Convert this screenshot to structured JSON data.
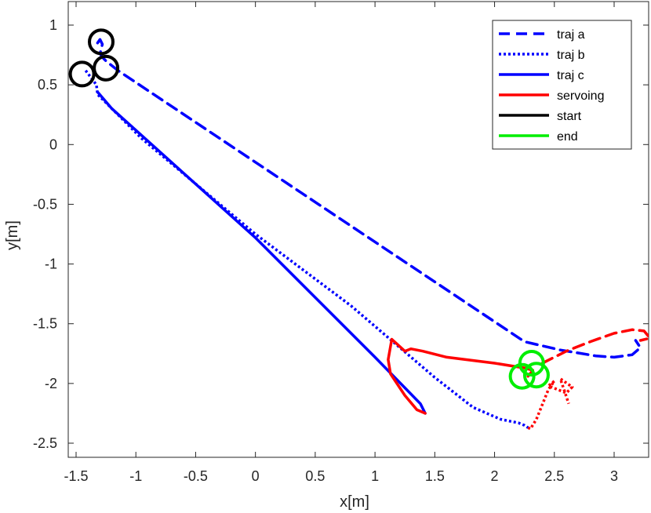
{
  "chart_data": {
    "type": "line",
    "xlabel": "x[m]",
    "ylabel": "y[m]",
    "xlim": [
      -1.55,
      3.3
    ],
    "ylim": [
      -2.6,
      1.2
    ],
    "xticks": [
      -1.5,
      -1,
      -0.5,
      0,
      0.5,
      1,
      1.5,
      2,
      2.5,
      3
    ],
    "xtick_labels": [
      "-1.5",
      "-1",
      "-0.5",
      "0",
      "0.5",
      "1",
      "1.5",
      "2",
      "2.5",
      "3"
    ],
    "yticks": [
      1,
      0.5,
      0,
      -0.5,
      -1,
      -1.5,
      -2,
      -2.5
    ],
    "ytick_labels": [
      "1",
      "0.5",
      "0",
      "-0.5",
      "-1",
      "-1.5",
      "-2",
      "-2.5"
    ],
    "grid": false,
    "legend": {
      "placement": "top-right"
    },
    "series": [
      {
        "name": "traj a",
        "color": "#0000ff",
        "style": "dashed",
        "x": [
          -1.32,
          -1.3,
          -1.28,
          -1.29,
          -1.3,
          -1.27,
          -1.25,
          -1.15,
          2.25,
          2.55,
          2.85,
          3.0,
          3.15,
          3.22,
          3.18
        ],
        "y": [
          0.85,
          0.88,
          0.84,
          0.8,
          0.76,
          0.72,
          0.7,
          0.62,
          -1.65,
          -1.72,
          -1.77,
          -1.78,
          -1.76,
          -1.7,
          -1.64
        ]
      },
      {
        "name": "traj b",
        "color": "#0000ff",
        "style": "dotted",
        "x": [
          -1.42,
          -1.33,
          -1.32,
          -0.95,
          0.0,
          0.8,
          1.5,
          1.82,
          2.05,
          2.15,
          2.2,
          2.25,
          2.28
        ],
        "y": [
          0.62,
          0.5,
          0.42,
          0.05,
          -0.75,
          -1.35,
          -1.95,
          -2.2,
          -2.3,
          -2.32,
          -2.33,
          -2.35,
          -2.37
        ]
      },
      {
        "name": "traj c",
        "color": "#0000ff",
        "style": "solid",
        "x": [
          -1.32,
          -1.2,
          0.0,
          1.0,
          1.38,
          1.42
        ],
        "y": [
          0.44,
          0.3,
          -0.78,
          -1.78,
          -2.17,
          -2.25
        ]
      },
      {
        "name": "servoing",
        "color": "#ff0000",
        "style": "solid",
        "x": [
          1.42,
          1.35,
          1.25,
          1.13,
          1.11,
          1.14,
          1.25,
          1.3,
          1.4,
          1.6,
          2.0,
          2.25,
          2.32,
          2.28
        ],
        "y": [
          -2.25,
          -2.22,
          -2.1,
          -1.92,
          -1.8,
          -1.63,
          -1.73,
          -1.71,
          -1.73,
          -1.78,
          -1.83,
          -1.87,
          -1.89,
          -1.94
        ]
      },
      {
        "name": "servoing",
        "color": "#ff0000",
        "style": "dashed",
        "x": [
          2.4,
          2.6,
          2.8,
          3.0,
          3.15,
          3.25,
          3.3,
          3.22
        ],
        "y": [
          -1.83,
          -1.73,
          -1.65,
          -1.58,
          -1.55,
          -1.56,
          -1.62,
          -1.64
        ]
      },
      {
        "name": "servoing",
        "color": "#ff0000",
        "style": "dotted",
        "x": [
          2.28,
          2.3,
          2.35,
          2.45,
          2.5,
          2.45,
          2.6,
          2.65,
          2.55,
          2.62
        ],
        "y": [
          -2.37,
          -2.38,
          -2.3,
          -2.05,
          -1.98,
          -2.02,
          -2.08,
          -2.03,
          -1.96,
          -2.17
        ]
      }
    ],
    "start_markers": {
      "color": "#000000",
      "points": [
        {
          "x": -1.29,
          "y": 0.86
        },
        {
          "x": -1.45,
          "y": 0.59
        },
        {
          "x": -1.25,
          "y": 0.64
        }
      ]
    },
    "end_markers": {
      "color": "#00ee00",
      "points": [
        {
          "x": 2.31,
          "y": -1.83
        },
        {
          "x": 2.23,
          "y": -1.94
        },
        {
          "x": 2.35,
          "y": -1.93
        }
      ]
    },
    "legend_entries": [
      {
        "label": "traj a",
        "color": "#0000ff",
        "style": "dashed"
      },
      {
        "label": "traj b",
        "color": "#0000ff",
        "style": "dotted"
      },
      {
        "label": "traj c",
        "color": "#0000ff",
        "style": "solid"
      },
      {
        "label": "servoing",
        "color": "#ff0000",
        "style": "solid"
      },
      {
        "label": "start",
        "color": "#000000",
        "style": "solid"
      },
      {
        "label": "end",
        "color": "#00ee00",
        "style": "solid"
      }
    ]
  }
}
